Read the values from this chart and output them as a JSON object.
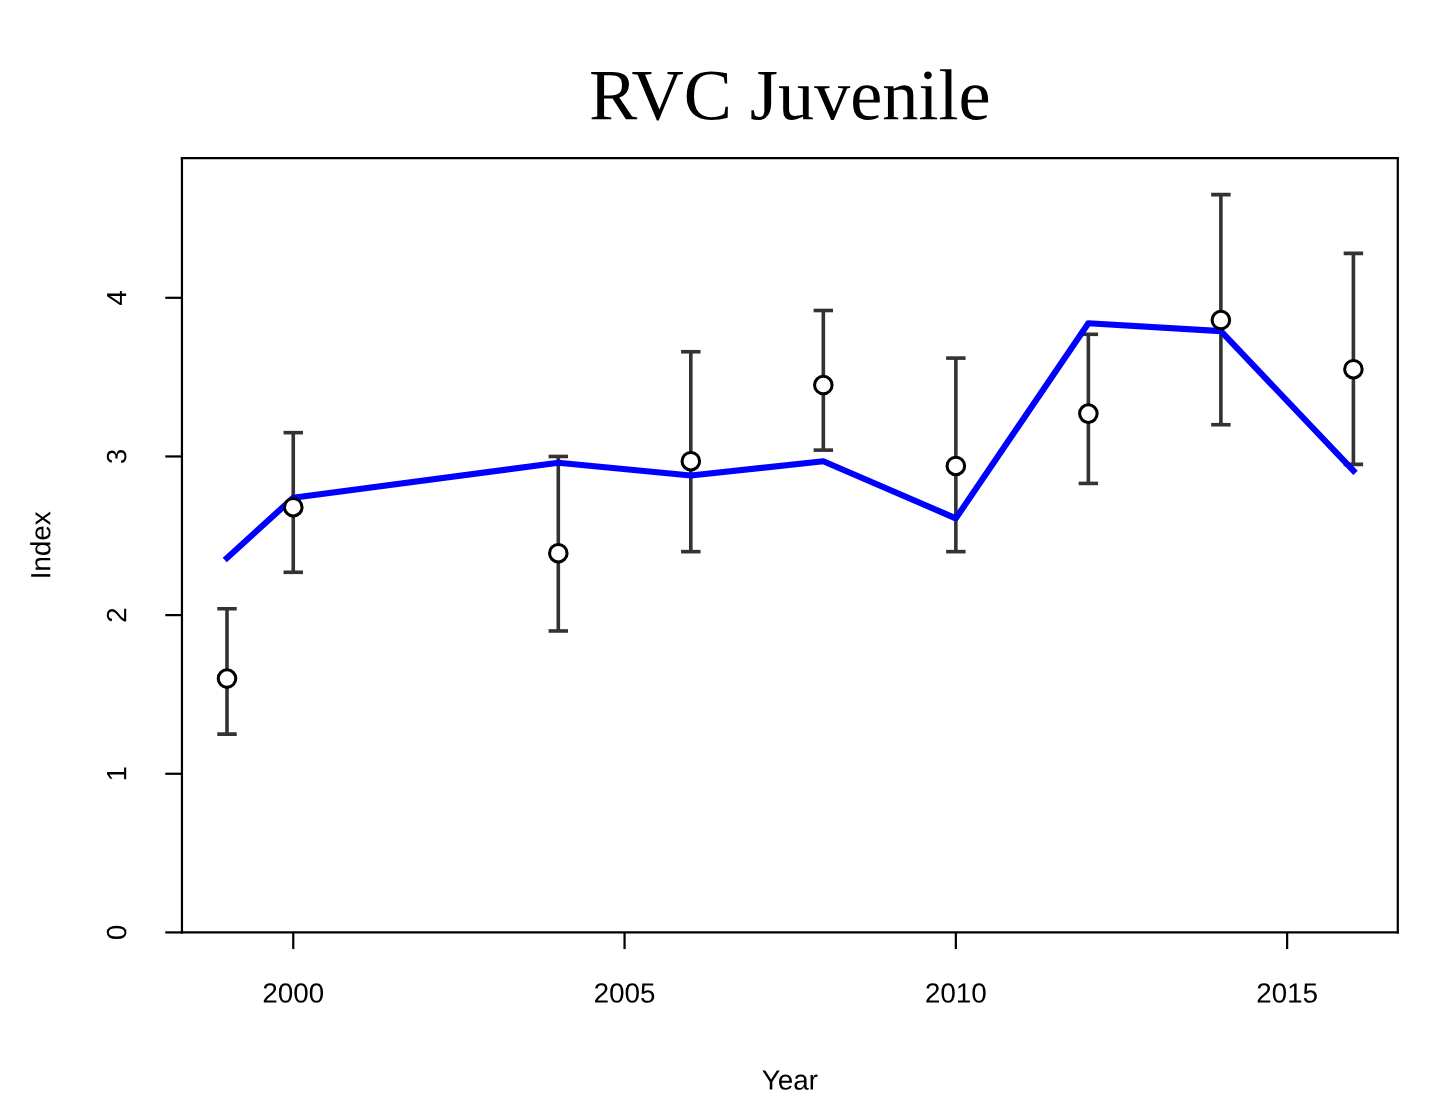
{
  "chart_data": {
    "type": "scatter",
    "title": "RVC Juvenile",
    "xlabel": "Year",
    "ylabel": "Index",
    "xlim": [
      1998.32,
      2016.67
    ],
    "xticks": [
      2000,
      2005,
      2010,
      2015
    ],
    "ylim": [
      0,
      4.88
    ],
    "yticks": [
      0,
      1,
      2,
      3,
      4
    ],
    "grid": false,
    "series": [
      {
        "color": "#000000",
        "marker": "circle",
        "x": [
          1999,
          2000,
          2004,
          2006,
          2008,
          2010,
          2012,
          2014,
          2016
        ],
        "values": [
          1.6,
          2.68,
          2.39,
          2.97,
          3.45,
          2.94,
          3.27,
          3.86,
          3.55
        ],
        "errors": [
          [
            1.25,
            2.04
          ],
          [
            2.27,
            3.15
          ],
          [
            1.9,
            3.0
          ],
          [
            2.4,
            3.66
          ],
          [
            3.04,
            3.92
          ],
          [
            2.4,
            3.62
          ],
          [
            2.83,
            3.77
          ],
          [
            3.2,
            4.65
          ],
          [
            2.95,
            4.28
          ]
        ]
      },
      {
        "type": "line",
        "color": "#0000ff",
        "marker": "none",
        "line_style": "solid",
        "x": [
          1999,
          2000,
          2004,
          2006,
          2008,
          2010,
          2012,
          2014,
          2016
        ],
        "values": [
          2.36,
          2.74,
          2.96,
          2.88,
          2.97,
          2.61,
          3.84,
          3.79,
          2.91
        ]
      }
    ]
  }
}
